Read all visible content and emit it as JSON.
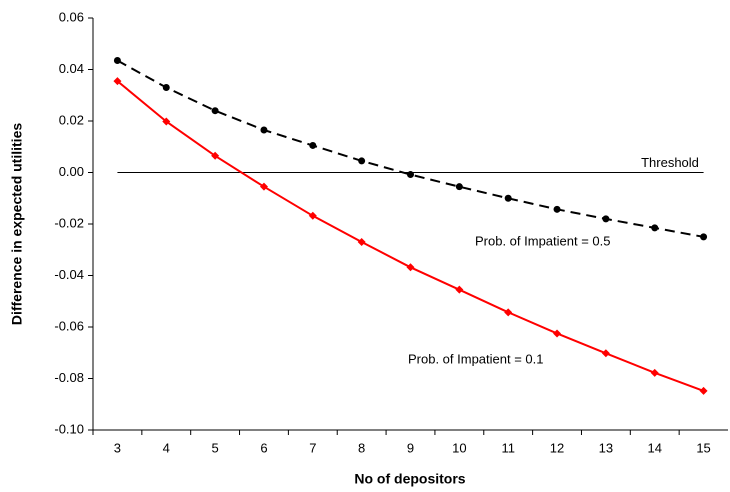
{
  "chart_data": {
    "type": "line",
    "x_label": "No of depositors",
    "y_label": "Difference in expected utilities",
    "categories": [
      "3",
      "4",
      "5",
      "6",
      "7",
      "8",
      "9",
      "10",
      "11",
      "12",
      "13",
      "14",
      "15"
    ],
    "series": [
      {
        "color": "#000000",
        "dash": true,
        "marker": "circle",
        "values": [
          0.0435,
          0.033,
          0.024,
          0.0165,
          0.0105,
          0.0045,
          -0.0008,
          -0.0055,
          -0.01,
          -0.0143,
          -0.018,
          -0.0215,
          -0.025
        ]
      },
      {
        "color": "#ff0000",
        "dash": false,
        "marker": "diamond",
        "values": [
          0.0355,
          0.0198,
          0.0065,
          -0.0055,
          -0.0168,
          -0.027,
          -0.0368,
          -0.0455,
          -0.0543,
          -0.0625,
          -0.0702,
          -0.0778,
          -0.0848
        ]
      }
    ],
    "threshold": {
      "value": 0,
      "label": "Threshold"
    },
    "annotations": [
      "Prob. of Impatient = 0.5",
      "Prob. of Impatient = 0.1"
    ],
    "ylim": [
      -0.1,
      0.06
    ],
    "yticks": [
      {
        "value": -0.1,
        "label": "-0.10"
      },
      -0.08,
      -0.06,
      -0.04,
      -0.02,
      {
        "value": 0,
        "label": "0.00"
      },
      0.02,
      0.04,
      0.06
    ]
  }
}
